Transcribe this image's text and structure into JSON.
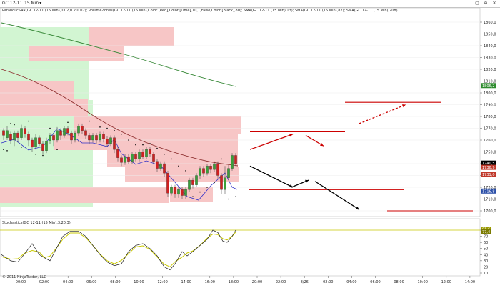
{
  "window": {
    "symbol": "GC 12-11",
    "timeframe": "15 Min",
    "controls": [
      "▢",
      "⊕",
      "✕"
    ]
  },
  "indicators_main": "ParabolicSAR(GC 12-11 (15 Min),0.02,0.2,0.02); VolumeZones(GC 12-11 (15 Min),Color [Red],Color [Lime],10,1,False,Color [Black],80); SMA(GC 12-11 (15 Min),13); SMA(GC 12-11 (15 Min),82); SMA(GC 12-11 (15 Min),208)",
  "indicators_stoch": "Stochastics(GC 12-11 (15 Min),3,20,3)",
  "copyright": "© 2011 NinjaTrader, LLC",
  "price_axis": {
    "labels": [
      "1860,0",
      "1850,0",
      "1840,0",
      "1830,0",
      "1820,0",
      "1810,0",
      "1800,0",
      "1790,0",
      "1780,0",
      "1770,0",
      "1760,0",
      "1750,0",
      "1740,0",
      "1730,0",
      "1720,0",
      "1710,0",
      "1700,0"
    ],
    "markers": [
      {
        "text": "1806,2",
        "color": "#2e8b2e"
      },
      {
        "text": "1740,5",
        "color": "#000000"
      },
      {
        "text": "1736,9",
        "color": "#c0392b"
      },
      {
        "text": "1731,0",
        "color": "#c0392b"
      },
      {
        "text": "1716,8",
        "color": "#2b4fa8"
      }
    ]
  },
  "stoch_axis": {
    "labels": [
      "80",
      "70",
      "60",
      "50",
      "40",
      "30",
      "20",
      "10"
    ],
    "markers": [
      {
        "text": "81,6",
        "color": "#9a9a00"
      },
      {
        "text": "77,4",
        "color": "#7a7a00"
      }
    ]
  },
  "time_axis": [
    "00:00",
    "02:00",
    "04:00",
    "06:00",
    "08:00",
    "10:00",
    "12:00",
    "14:00",
    "16:00",
    "18:00",
    "20:00",
    "22:00",
    "8/26",
    "02:00",
    "04:00",
    "06:00",
    "08:00",
    "10:00",
    "12:00",
    "14:00"
  ],
  "colors": {
    "zone_red": "#f7c6c6",
    "zone_green": "#d2f5d2",
    "sma13": "#3030c8",
    "sma82": "#8b2b2b",
    "sma208": "#3a8a3a",
    "candle_up": "#3aa03a",
    "candle_down": "#d02020",
    "annotation_red": "#cc0000",
    "annotation_black": "#000000",
    "stoch_k": "#202020",
    "stoch_d": "#c8c800",
    "stoch_upper": "#c8c800",
    "stoch_lower": "#a070d0"
  }
}
